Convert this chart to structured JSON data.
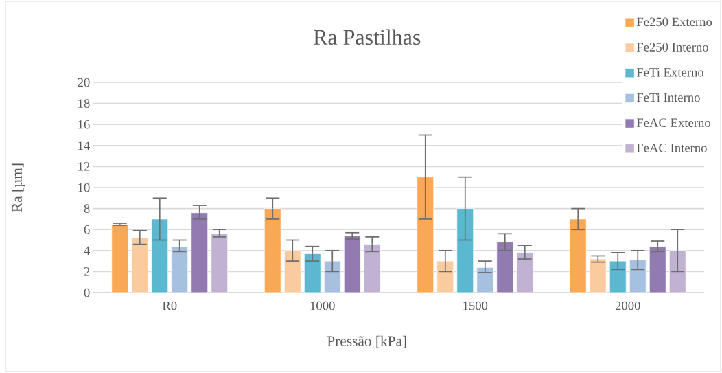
{
  "chart_data": {
    "type": "bar",
    "title": "Ra Pastilhas",
    "xlabel": "Pressão [kPa]",
    "ylabel": "Ra [µm]",
    "categories": [
      "R0",
      "1000",
      "1500",
      "2000"
    ],
    "ylim": [
      0,
      20
    ],
    "yticks": [
      0,
      2,
      4,
      6,
      8,
      10,
      12,
      14,
      16,
      18,
      20
    ],
    "grid": "y",
    "legend": "top right",
    "series": [
      {
        "name": "Fe250 Externo",
        "color": "#f9a855",
        "values": [
          6.5,
          8,
          11,
          7
        ],
        "errors": [
          [
            6.4,
            6.6
          ],
          [
            7,
            9
          ],
          [
            7,
            15
          ],
          [
            6,
            8
          ]
        ]
      },
      {
        "name": "Fe250 Interno",
        "color": "#fbcba0",
        "values": [
          5.2,
          4,
          3,
          3.2
        ],
        "errors": [
          [
            4.6,
            5.9
          ],
          [
            3,
            5
          ],
          [
            2,
            4
          ],
          [
            2.9,
            3.5
          ]
        ]
      },
      {
        "name": "FeTi Externo",
        "color": "#5bb8d0",
        "values": [
          7,
          3.7,
          8,
          3
        ],
        "errors": [
          [
            5,
            9
          ],
          [
            3,
            4.4
          ],
          [
            5,
            11
          ],
          [
            2.2,
            3.8
          ]
        ]
      },
      {
        "name": "FeTi Interno",
        "color": "#a6c1e0",
        "values": [
          4.4,
          3,
          2.4,
          3.1
        ],
        "errors": [
          [
            3.9,
            5
          ],
          [
            2,
            4
          ],
          [
            1.9,
            3
          ],
          [
            2.2,
            4
          ]
        ]
      },
      {
        "name": "FeAC Externo",
        "color": "#927bb1",
        "values": [
          7.6,
          5.4,
          4.8,
          4.4
        ],
        "errors": [
          [
            7,
            8.3
          ],
          [
            5.1,
            5.7
          ],
          [
            4,
            5.6
          ],
          [
            3.9,
            4.9
          ]
        ]
      },
      {
        "name": "FeAC Interno",
        "color": "#c1b2d4",
        "values": [
          5.6,
          4.6,
          3.8,
          4
        ],
        "errors": [
          [
            5.3,
            6
          ],
          [
            3.9,
            5.3
          ],
          [
            3.2,
            4.5
          ],
          [
            2,
            6
          ]
        ]
      }
    ]
  }
}
